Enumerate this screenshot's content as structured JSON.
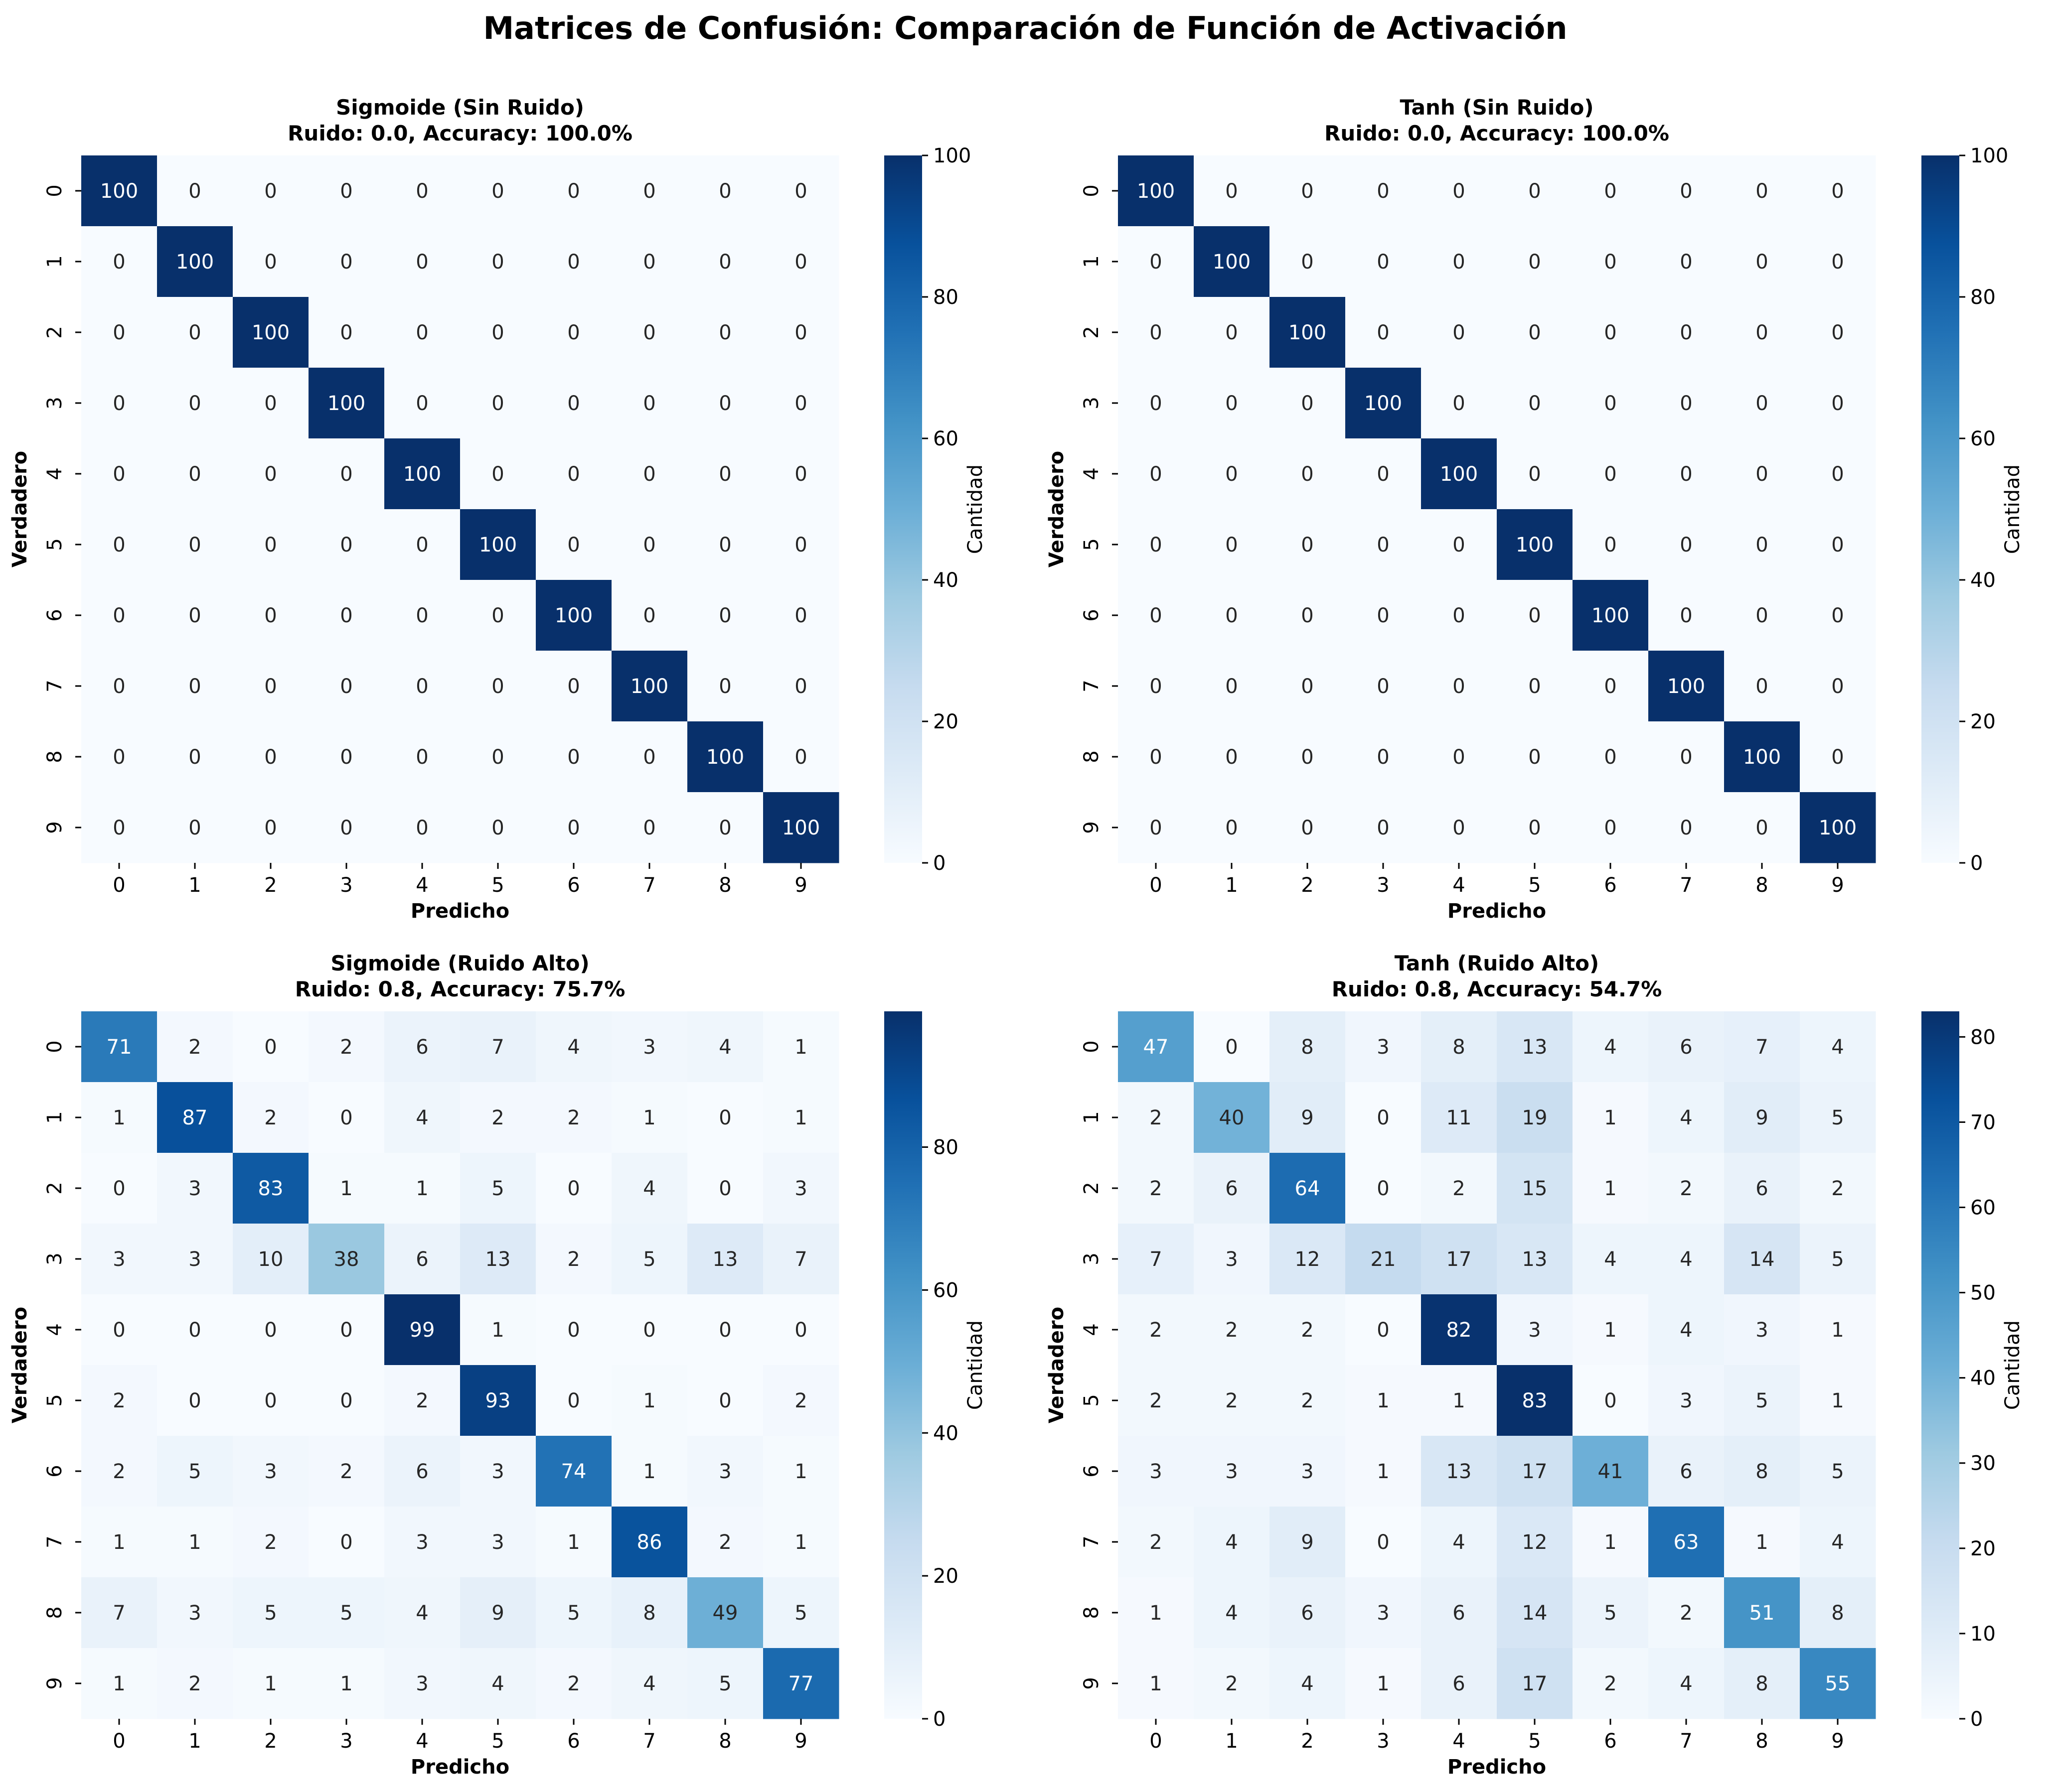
{
  "figure": {
    "suptitle": "Matrices de Confusión: Comparación de Función de Activación"
  },
  "chart_data": [
    {
      "type": "heatmap",
      "title_line1": "Sigmoide (Sin Ruido)",
      "title_line2": "Ruido: 0.0, Accuracy: 100.0%",
      "xlabel": "Predicho",
      "ylabel": "Verdadero",
      "x_categories": [
        "0",
        "1",
        "2",
        "3",
        "4",
        "5",
        "6",
        "7",
        "8",
        "9"
      ],
      "y_categories": [
        "0",
        "1",
        "2",
        "3",
        "4",
        "5",
        "6",
        "7",
        "8",
        "9"
      ],
      "colorbar": {
        "label": "Cantidad",
        "vmin": 0,
        "vmax": 100,
        "ticks": [
          0,
          20,
          40,
          60,
          80,
          100
        ]
      },
      "colormap": "Blues",
      "matrix": [
        [
          100,
          0,
          0,
          0,
          0,
          0,
          0,
          0,
          0,
          0
        ],
        [
          0,
          100,
          0,
          0,
          0,
          0,
          0,
          0,
          0,
          0
        ],
        [
          0,
          0,
          100,
          0,
          0,
          0,
          0,
          0,
          0,
          0
        ],
        [
          0,
          0,
          0,
          100,
          0,
          0,
          0,
          0,
          0,
          0
        ],
        [
          0,
          0,
          0,
          0,
          100,
          0,
          0,
          0,
          0,
          0
        ],
        [
          0,
          0,
          0,
          0,
          0,
          100,
          0,
          0,
          0,
          0
        ],
        [
          0,
          0,
          0,
          0,
          0,
          0,
          100,
          0,
          0,
          0
        ],
        [
          0,
          0,
          0,
          0,
          0,
          0,
          0,
          100,
          0,
          0
        ],
        [
          0,
          0,
          0,
          0,
          0,
          0,
          0,
          0,
          100,
          0
        ],
        [
          0,
          0,
          0,
          0,
          0,
          0,
          0,
          0,
          0,
          100
        ]
      ]
    },
    {
      "type": "heatmap",
      "title_line1": "Tanh (Sin Ruido)",
      "title_line2": "Ruido: 0.0, Accuracy: 100.0%",
      "xlabel": "Predicho",
      "ylabel": "Verdadero",
      "x_categories": [
        "0",
        "1",
        "2",
        "3",
        "4",
        "5",
        "6",
        "7",
        "8",
        "9"
      ],
      "y_categories": [
        "0",
        "1",
        "2",
        "3",
        "4",
        "5",
        "6",
        "7",
        "8",
        "9"
      ],
      "colorbar": {
        "label": "Cantidad",
        "vmin": 0,
        "vmax": 100,
        "ticks": [
          0,
          20,
          40,
          60,
          80,
          100
        ]
      },
      "colormap": "Blues",
      "matrix": [
        [
          100,
          0,
          0,
          0,
          0,
          0,
          0,
          0,
          0,
          0
        ],
        [
          0,
          100,
          0,
          0,
          0,
          0,
          0,
          0,
          0,
          0
        ],
        [
          0,
          0,
          100,
          0,
          0,
          0,
          0,
          0,
          0,
          0
        ],
        [
          0,
          0,
          0,
          100,
          0,
          0,
          0,
          0,
          0,
          0
        ],
        [
          0,
          0,
          0,
          0,
          100,
          0,
          0,
          0,
          0,
          0
        ],
        [
          0,
          0,
          0,
          0,
          0,
          100,
          0,
          0,
          0,
          0
        ],
        [
          0,
          0,
          0,
          0,
          0,
          0,
          100,
          0,
          0,
          0
        ],
        [
          0,
          0,
          0,
          0,
          0,
          0,
          0,
          100,
          0,
          0
        ],
        [
          0,
          0,
          0,
          0,
          0,
          0,
          0,
          0,
          100,
          0
        ],
        [
          0,
          0,
          0,
          0,
          0,
          0,
          0,
          0,
          0,
          100
        ]
      ]
    },
    {
      "type": "heatmap",
      "title_line1": "Sigmoide (Ruido Alto)",
      "title_line2": "Ruido: 0.8, Accuracy: 75.7%",
      "xlabel": "Predicho",
      "ylabel": "Verdadero",
      "x_categories": [
        "0",
        "1",
        "2",
        "3",
        "4",
        "5",
        "6",
        "7",
        "8",
        "9"
      ],
      "y_categories": [
        "0",
        "1",
        "2",
        "3",
        "4",
        "5",
        "6",
        "7",
        "8",
        "9"
      ],
      "colorbar": {
        "label": "Cantidad",
        "vmin": 0,
        "vmax": 99,
        "ticks": [
          0,
          20,
          40,
          60,
          80
        ]
      },
      "colormap": "Blues",
      "matrix": [
        [
          71,
          2,
          0,
          2,
          6,
          7,
          4,
          3,
          4,
          1
        ],
        [
          1,
          87,
          2,
          0,
          4,
          2,
          2,
          1,
          0,
          1
        ],
        [
          0,
          3,
          83,
          1,
          1,
          5,
          0,
          4,
          0,
          3
        ],
        [
          3,
          3,
          10,
          38,
          6,
          13,
          2,
          5,
          13,
          7
        ],
        [
          0,
          0,
          0,
          0,
          99,
          1,
          0,
          0,
          0,
          0
        ],
        [
          2,
          0,
          0,
          0,
          2,
          93,
          0,
          1,
          0,
          2
        ],
        [
          2,
          5,
          3,
          2,
          6,
          3,
          74,
          1,
          3,
          1
        ],
        [
          1,
          1,
          2,
          0,
          3,
          3,
          1,
          86,
          2,
          1
        ],
        [
          7,
          3,
          5,
          5,
          4,
          9,
          5,
          8,
          49,
          5
        ],
        [
          1,
          2,
          1,
          1,
          3,
          4,
          2,
          4,
          5,
          77
        ]
      ]
    },
    {
      "type": "heatmap",
      "title_line1": "Tanh (Ruido Alto)",
      "title_line2": "Ruido: 0.8, Accuracy: 54.7%",
      "xlabel": "Predicho",
      "ylabel": "Verdadero",
      "x_categories": [
        "0",
        "1",
        "2",
        "3",
        "4",
        "5",
        "6",
        "7",
        "8",
        "9"
      ],
      "y_categories": [
        "0",
        "1",
        "2",
        "3",
        "4",
        "5",
        "6",
        "7",
        "8",
        "9"
      ],
      "colorbar": {
        "label": "Cantidad",
        "vmin": 0,
        "vmax": 83,
        "ticks": [
          0,
          10,
          20,
          30,
          40,
          50,
          60,
          70,
          80
        ]
      },
      "colormap": "Blues",
      "matrix": [
        [
          47,
          0,
          8,
          3,
          8,
          13,
          4,
          6,
          7,
          4
        ],
        [
          2,
          40,
          9,
          0,
          11,
          19,
          1,
          4,
          9,
          5
        ],
        [
          2,
          6,
          64,
          0,
          2,
          15,
          1,
          2,
          6,
          2
        ],
        [
          7,
          3,
          12,
          21,
          17,
          13,
          4,
          4,
          14,
          5
        ],
        [
          2,
          2,
          2,
          0,
          82,
          3,
          1,
          4,
          3,
          1
        ],
        [
          2,
          2,
          2,
          1,
          1,
          83,
          0,
          3,
          5,
          1
        ],
        [
          3,
          3,
          3,
          1,
          13,
          17,
          41,
          6,
          8,
          5
        ],
        [
          2,
          4,
          9,
          0,
          4,
          12,
          1,
          63,
          1,
          4
        ],
        [
          1,
          4,
          6,
          3,
          6,
          14,
          5,
          2,
          51,
          8
        ],
        [
          1,
          2,
          4,
          1,
          6,
          17,
          2,
          4,
          8,
          55
        ]
      ]
    }
  ]
}
